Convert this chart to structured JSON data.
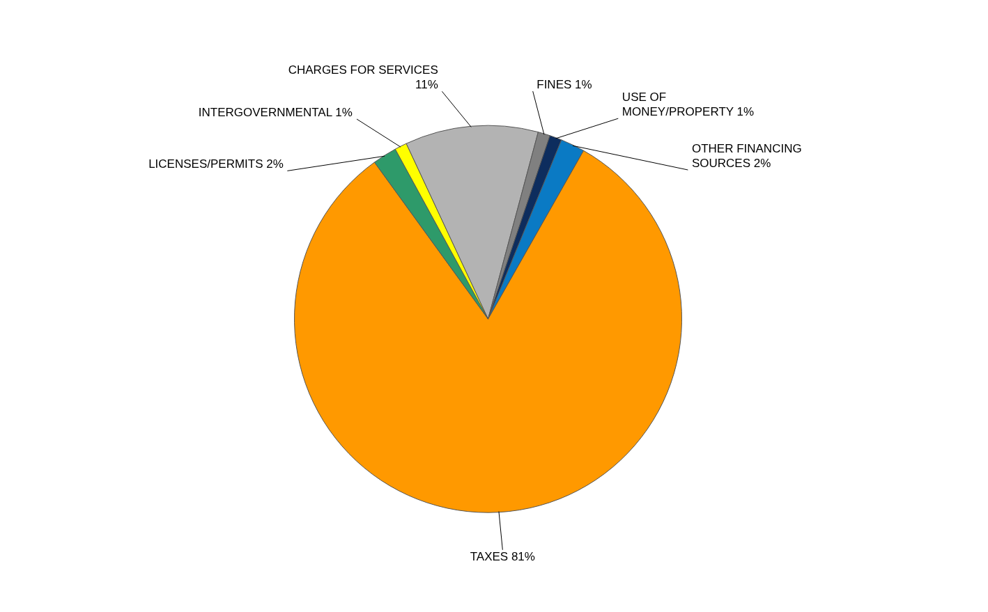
{
  "chart_data": {
    "type": "pie",
    "categories": [
      "CHARGES FOR SERVICES",
      "FINES",
      "USE OF MONEY/PROPERTY",
      "OTHER FINANCING SOURCES",
      "TAXES",
      "LICENSES/PERMITS",
      "INTERGOVERNMENTAL"
    ],
    "values": [
      11,
      1,
      1,
      2,
      81,
      2,
      1
    ],
    "value_labels": [
      "11%",
      "1%",
      "1%",
      "2%",
      "81%",
      "2%",
      "1%"
    ],
    "colors": [
      "#b3b3b3",
      "#808080",
      "#0d2d5e",
      "#0a7ac4",
      "#ff9900",
      "#2e9a6a",
      "#ffff00"
    ],
    "legend": false
  }
}
